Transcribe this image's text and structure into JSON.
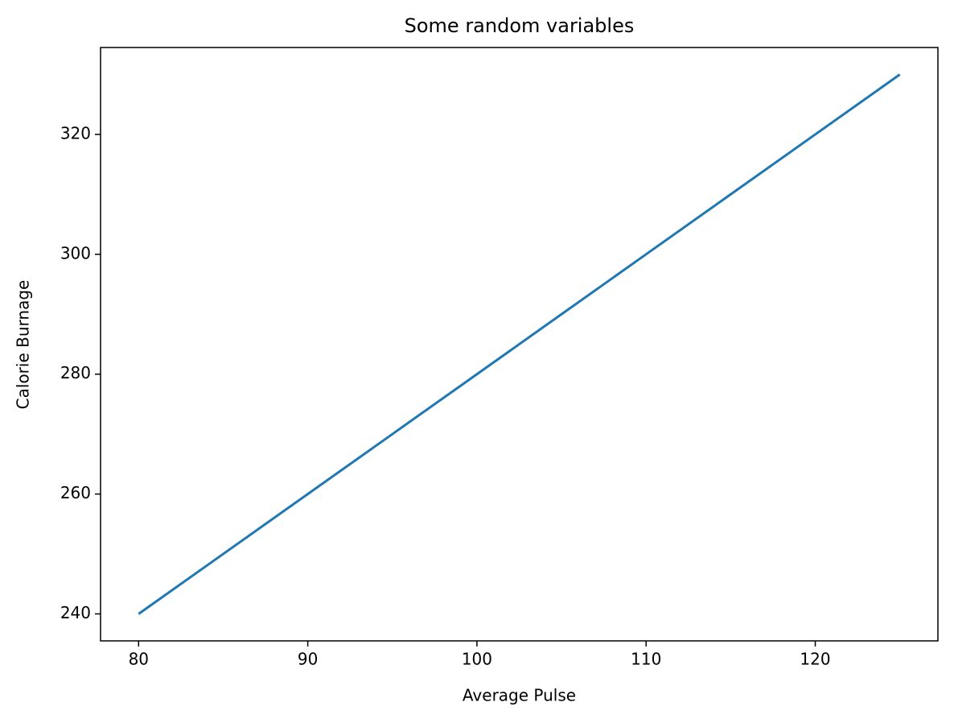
{
  "chart_data": {
    "type": "line",
    "title": "Some random variables",
    "x_label": "Average Pulse",
    "y_label": "Calorie Burnage",
    "x": [
      80,
      85,
      90,
      95,
      100,
      105,
      110,
      115,
      120,
      125
    ],
    "series": [
      {
        "color": "#1f77b4",
        "values": [
          240,
          250,
          260,
          270,
          280,
          290,
          300,
          310,
          320,
          330
        ]
      }
    ],
    "xlim": [
      77.75,
      127.25
    ],
    "ylim": [
      235.5,
      334.5
    ],
    "xticks": [
      80,
      90,
      100,
      110,
      120
    ],
    "yticks": [
      240,
      260,
      280,
      300,
      320
    ]
  }
}
